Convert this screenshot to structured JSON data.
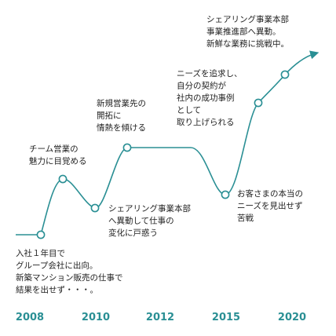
{
  "chart_data": {
    "type": "line",
    "title": "",
    "xlabel": "",
    "ylabel": "",
    "x_ticks": [
      "2008",
      "2010",
      "2012",
      "2015",
      "2020"
    ],
    "colors": {
      "line": "#2a8f94",
      "ticks": "#2a8f94",
      "marker_fill": "#ffffff"
    },
    "markers": [
      {
        "id": "m2008",
        "year": 2008,
        "label": [
          "入社１年目で",
          "グループ会社に出向。",
          "新築マンション販売の仕事で",
          "結果を出せず・・・。"
        ]
      },
      {
        "id": "m2009",
        "year": 2009,
        "label": [
          "チーム営業の",
          "魅力に目覚める"
        ]
      },
      {
        "id": "m2010",
        "year": 2010,
        "label": [
          "シェアリング事業本部",
          "へ異動して仕事の",
          "変化に戸惑う"
        ]
      },
      {
        "id": "m2011",
        "year": 2011,
        "label": [
          "新規営業先の",
          "開拓に",
          "情熱を傾ける"
        ]
      },
      {
        "id": "m2015",
        "year": 2015,
        "label": [
          "お客さまの本当の",
          "ニーズを見出せず",
          "苦戦"
        ]
      },
      {
        "id": "m2016",
        "year": 2016,
        "label": [
          "ニーズを追求し、",
          "自分の契約が",
          "社内の成功事例",
          "として",
          "取り上げられる"
        ]
      },
      {
        "id": "m2018",
        "year": 2018,
        "label": [
          "シェアリング事業本部",
          "事業推進部へ異動。",
          "新鮮な業務に挑戦中。"
        ]
      }
    ]
  }
}
